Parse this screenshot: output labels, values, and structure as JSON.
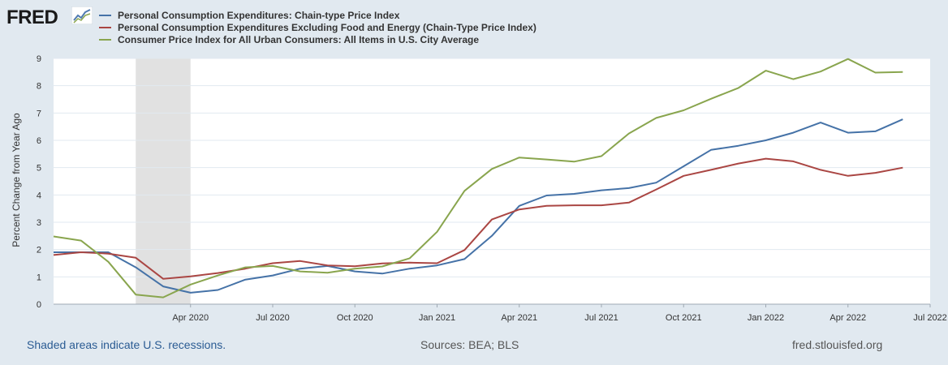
{
  "header": {
    "logo_text": "FRED",
    "logo_icon": "trend-line-icon"
  },
  "footer": {
    "recession_note": "Shaded areas indicate U.S. recessions.",
    "sources": "Sources: BEA; BLS",
    "site": "fred.stlouisfed.org"
  },
  "colors": {
    "background": "#e1e9f0",
    "plot": "#ffffff",
    "grid": "#e1e9f0",
    "recession": "#e1e1e1"
  },
  "chart_data": {
    "type": "line",
    "title": "",
    "xlabel": "",
    "ylabel": "Percent Change from Year Ago",
    "ylim": [
      0,
      9
    ],
    "yticks": [
      0,
      1,
      2,
      3,
      4,
      5,
      6,
      7,
      8,
      9
    ],
    "x_range": [
      "2019-11",
      "2022-07"
    ],
    "xticks": [
      {
        "month": "2020-04",
        "label": "Apr 2020"
      },
      {
        "month": "2020-07",
        "label": "Jul 2020"
      },
      {
        "month": "2020-10",
        "label": "Oct 2020"
      },
      {
        "month": "2021-01",
        "label": "Jan 2021"
      },
      {
        "month": "2021-04",
        "label": "Apr 2021"
      },
      {
        "month": "2021-07",
        "label": "Jul 2021"
      },
      {
        "month": "2021-10",
        "label": "Oct 2021"
      },
      {
        "month": "2022-01",
        "label": "Jan 2022"
      },
      {
        "month": "2022-04",
        "label": "Apr 2022"
      },
      {
        "month": "2022-07",
        "label": "Jul 2022"
      }
    ],
    "recession": {
      "start": "2020-02",
      "end": "2020-04"
    },
    "grid": true,
    "legend_position": "top-left",
    "series": [
      {
        "name": "Personal Consumption Expenditures: Chain-type Price Index",
        "color": "#4572a7",
        "x": [
          "2019-11",
          "2019-12",
          "2020-01",
          "2020-02",
          "2020-03",
          "2020-04",
          "2020-05",
          "2020-06",
          "2020-07",
          "2020-08",
          "2020-09",
          "2020-10",
          "2020-11",
          "2020-12",
          "2021-01",
          "2021-02",
          "2021-03",
          "2021-04",
          "2021-05",
          "2021-06",
          "2021-07",
          "2021-08",
          "2021-09",
          "2021-10",
          "2021-11",
          "2021-12",
          "2022-01",
          "2022-02",
          "2022-03",
          "2022-04",
          "2022-05",
          "2022-06"
        ],
        "values": [
          1.9,
          1.9,
          1.9,
          1.35,
          0.65,
          0.42,
          0.52,
          0.9,
          1.05,
          1.3,
          1.4,
          1.2,
          1.12,
          1.3,
          1.42,
          1.65,
          2.5,
          3.6,
          3.98,
          4.04,
          4.17,
          4.25,
          4.45,
          5.05,
          5.65,
          5.8,
          6.0,
          6.28,
          6.65,
          6.28,
          6.33,
          6.77
        ]
      },
      {
        "name": "Personal Consumption Expenditures Excluding Food and Energy (Chain-Type Price Index)",
        "color": "#aa4643",
        "x": [
          "2019-11",
          "2019-12",
          "2020-01",
          "2020-02",
          "2020-03",
          "2020-04",
          "2020-05",
          "2020-06",
          "2020-07",
          "2020-08",
          "2020-09",
          "2020-10",
          "2020-11",
          "2020-12",
          "2021-01",
          "2021-02",
          "2021-03",
          "2021-04",
          "2021-05",
          "2021-06",
          "2021-07",
          "2021-08",
          "2021-09",
          "2021-10",
          "2021-11",
          "2021-12",
          "2022-01",
          "2022-02",
          "2022-03",
          "2022-04",
          "2022-05",
          "2022-06"
        ],
        "values": [
          1.8,
          1.9,
          1.85,
          1.7,
          0.93,
          1.02,
          1.14,
          1.3,
          1.5,
          1.58,
          1.42,
          1.39,
          1.49,
          1.52,
          1.5,
          1.98,
          3.1,
          3.47,
          3.6,
          3.62,
          3.62,
          3.72,
          4.2,
          4.7,
          4.92,
          5.15,
          5.33,
          5.23,
          4.92,
          4.7,
          4.81,
          5.0
        ]
      },
      {
        "name": "Consumer Price Index for All Urban Consumers: All Items in U.S. City Average",
        "color": "#89a54e",
        "x": [
          "2019-11",
          "2019-12",
          "2020-01",
          "2020-02",
          "2020-03",
          "2020-04",
          "2020-05",
          "2020-06",
          "2020-07",
          "2020-08",
          "2020-09",
          "2020-10",
          "2020-11",
          "2020-12",
          "2021-01",
          "2021-02",
          "2021-03",
          "2021-04",
          "2021-05",
          "2021-06",
          "2021-07",
          "2021-08",
          "2021-09",
          "2021-10",
          "2021-11",
          "2021-12",
          "2022-01",
          "2022-02",
          "2022-03",
          "2022-04",
          "2022-05",
          "2022-06"
        ],
        "values": [
          2.48,
          2.33,
          1.55,
          0.35,
          0.25,
          0.72,
          1.05,
          1.35,
          1.4,
          1.2,
          1.15,
          1.3,
          1.38,
          1.68,
          2.65,
          4.15,
          4.95,
          5.37,
          5.3,
          5.22,
          5.42,
          6.25,
          6.82,
          7.1,
          7.52,
          7.92,
          8.55,
          8.24,
          8.52,
          8.98,
          8.48,
          8.5
        ]
      }
    ]
  }
}
